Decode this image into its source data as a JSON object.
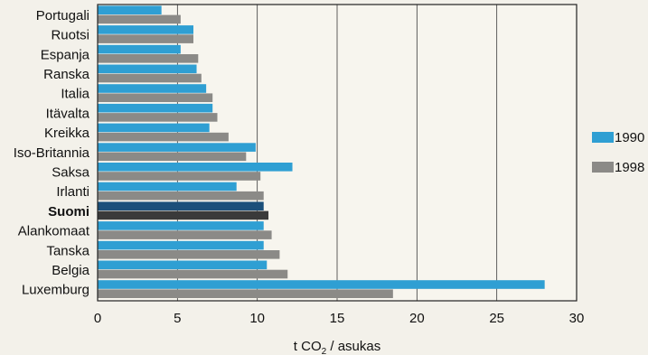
{
  "chart_data": {
    "type": "bar",
    "orientation": "horizontal",
    "categories": [
      "Portugali",
      "Ruotsi",
      "Espanja",
      "Ranska",
      "Italia",
      "Itävalta",
      "Kreikka",
      "Iso-Britannia",
      "Saksa",
      "Irlanti",
      "Suomi",
      "Alankomaat",
      "Tanska",
      "Belgia",
      "Luxemburg"
    ],
    "highlighted_category": "Suomi",
    "series": [
      {
        "name": "1990",
        "color": "#2f9fd3",
        "highlight_color": "#1b4f7a",
        "values": [
          4.0,
          6.0,
          5.2,
          6.2,
          6.8,
          7.2,
          7.0,
          9.9,
          12.2,
          8.7,
          10.4,
          10.4,
          10.4,
          10.6,
          28.0
        ]
      },
      {
        "name": "1998",
        "color": "#8b8a87",
        "highlight_color": "#3a3a3a",
        "values": [
          5.2,
          6.0,
          6.3,
          6.5,
          7.2,
          7.5,
          8.2,
          9.3,
          10.2,
          10.4,
          10.7,
          10.9,
          11.4,
          11.9,
          18.5
        ]
      }
    ],
    "xlim": [
      0,
      30
    ],
    "xticks": [
      0,
      5,
      10,
      15,
      20,
      25,
      30
    ],
    "xticklabels": [
      "0",
      "5",
      "10",
      "15",
      "20",
      "25",
      "30"
    ],
    "xlabel": "t CO2 / asukas",
    "xlabel_main": "t CO",
    "xlabel_sub": "2",
    "xlabel_rest": " / asukas",
    "grid": "vertical",
    "legend_position": "right"
  }
}
